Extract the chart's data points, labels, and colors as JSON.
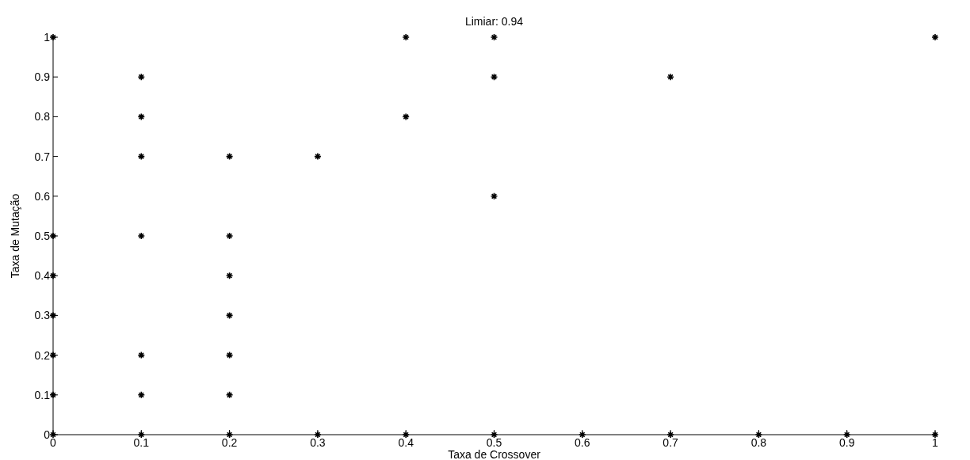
{
  "chart_data": {
    "type": "scatter",
    "title": "Limiar: 0.94",
    "xlabel": "Taxa de Crossover",
    "ylabel": "Taxa de Mutação",
    "series": [
      {
        "color": "#000000",
        "x": [
          0,
          0,
          0,
          0,
          0,
          0,
          0,
          0.1,
          0.1,
          0.1,
          0.1,
          0.1,
          0.1,
          0.1,
          0.2,
          0.2,
          0.2,
          0.2,
          0.2,
          0.2,
          0.2,
          0.3,
          0.3,
          0.4,
          0.4,
          0.4,
          0.5,
          0.5,
          0.5,
          0.5,
          0.6,
          0.7,
          0.7,
          0.8,
          0.9,
          1,
          1
        ],
        "values": [
          1,
          0.5,
          0.4,
          0.3,
          0.2,
          0.1,
          0,
          0.9,
          0.8,
          0.7,
          0.5,
          0.2,
          0.1,
          0,
          0.7,
          0.5,
          0.4,
          0.3,
          0.2,
          0.1,
          0,
          0.7,
          0,
          1,
          0.8,
          0,
          1,
          0.9,
          0.6,
          0,
          0,
          0.9,
          0,
          0,
          0,
          1,
          0
        ]
      }
    ],
    "xlim": [
      0,
      1
    ],
    "ylim": [
      0,
      1
    ],
    "xticks": [
      0,
      0.1,
      0.2,
      0.3,
      0.4,
      0.5,
      0.6,
      0.7,
      0.8,
      0.9,
      1
    ],
    "yticks": [
      0,
      0.1,
      0.2,
      0.3,
      0.4,
      0.5,
      0.6,
      0.7,
      0.8,
      0.9,
      1
    ],
    "marker": "cross",
    "grid": false
  }
}
